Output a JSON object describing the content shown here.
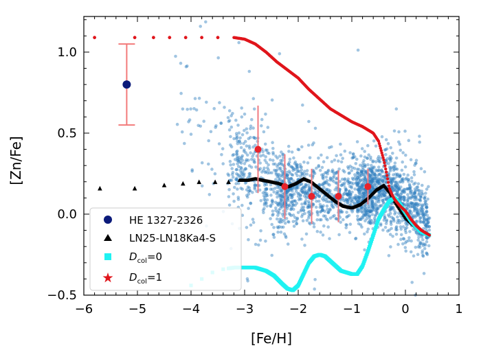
{
  "chart_data": {
    "type": "scatter",
    "xlabel": "[Fe/H]",
    "ylabel": "[Zn/Fe]",
    "xlim": [
      -6,
      1
    ],
    "ylim": [
      -0.5,
      1.22
    ],
    "x_ticks": [
      -6,
      -5,
      -4,
      -3,
      -2,
      -1,
      0,
      1
    ],
    "y_ticks": [
      -0.5,
      0.0,
      0.5,
      1.0
    ],
    "x_tick_labels": [
      "−6",
      "−5",
      "−4",
      "−3",
      "−2",
      "−1",
      "0",
      "1"
    ],
    "y_tick_labels": [
      "−0.5",
      "0.0",
      "0.5",
      "1.0"
    ],
    "grid": false,
    "legend_position": "bottom-left",
    "legend": [
      {
        "label": "HE 1327-2326",
        "marker": "circle",
        "color": "#0b1a7a"
      },
      {
        "label": "LN25-LN18Ka4-S",
        "marker": "triangle",
        "color": "#000000"
      },
      {
        "label_main": "D",
        "label_sub": "col",
        "label_rest": "=0",
        "marker": "square",
        "color": "#1ff2f2"
      },
      {
        "label_main": "D",
        "label_sub": "col",
        "label_rest": "=1",
        "marker": "star",
        "color": "#e0151b"
      }
    ],
    "observed_star": {
      "name": "HE 1327-2326",
      "x": -5.2,
      "y": 0.8,
      "y_err": 0.25,
      "color": "#0b1a7a",
      "errorbar_color": "#f27a7a"
    },
    "binned_means": {
      "color": "#e8232b",
      "errorbar_color": "#f07a80",
      "points": [
        {
          "x": -2.75,
          "y": 0.4,
          "err": 0.27
        },
        {
          "x": -2.25,
          "y": 0.17,
          "err": 0.2
        },
        {
          "x": -1.75,
          "y": 0.11,
          "err": 0.17
        },
        {
          "x": -1.25,
          "y": 0.11,
          "err": 0.16
        },
        {
          "x": -0.7,
          "y": 0.17,
          "err": 0.11
        }
      ]
    },
    "series": [
      {
        "name": "LN25-LN18Ka4-S",
        "marker": "triangle",
        "color": "#000000",
        "x": [
          -5.7,
          -5.05,
          -4.5,
          -4.15,
          -3.85,
          -3.55,
          -3.3,
          -3.1,
          -2.95,
          -2.8,
          -2.65,
          -2.5,
          -2.35,
          -2.2,
          -2.05,
          -1.9,
          -1.75,
          -1.6,
          -1.45,
          -1.3,
          -1.15,
          -1.0,
          -0.85,
          -0.7,
          -0.55,
          -0.4,
          -0.3,
          -0.2,
          -0.1,
          0.0,
          0.1,
          0.2,
          0.3,
          0.45
        ],
        "y": [
          0.16,
          0.16,
          0.18,
          0.19,
          0.2,
          0.2,
          0.2,
          0.21,
          0.21,
          0.22,
          0.21,
          0.2,
          0.19,
          0.17,
          0.19,
          0.22,
          0.2,
          0.16,
          0.12,
          0.08,
          0.05,
          0.04,
          0.06,
          0.1,
          0.15,
          0.18,
          0.14,
          0.08,
          0.03,
          -0.02,
          -0.05,
          -0.08,
          -0.11,
          -0.13
        ]
      },
      {
        "name": "Dcol=0",
        "marker": "square",
        "color": "#1ff2f2",
        "x": [
          -4.0,
          -3.8,
          -3.6,
          -3.4,
          -3.2,
          -3.0,
          -2.8,
          -2.6,
          -2.45,
          -2.3,
          -2.2,
          -2.1,
          -2.0,
          -1.9,
          -1.8,
          -1.7,
          -1.6,
          -1.5,
          -1.4,
          -1.3,
          -1.2,
          -1.1,
          -1.0,
          -0.9,
          -0.8,
          -0.7,
          -0.6,
          -0.5,
          -0.4,
          -0.3,
          -0.2,
          -0.1,
          0.0,
          0.1,
          0.2,
          0.3,
          0.45
        ],
        "y": [
          -0.44,
          -0.4,
          -0.36,
          -0.34,
          -0.33,
          -0.33,
          -0.33,
          -0.35,
          -0.38,
          -0.43,
          -0.46,
          -0.47,
          -0.44,
          -0.37,
          -0.3,
          -0.26,
          -0.25,
          -0.26,
          -0.29,
          -0.32,
          -0.35,
          -0.36,
          -0.37,
          -0.37,
          -0.32,
          -0.23,
          -0.13,
          -0.03,
          0.03,
          0.08,
          0.1,
          0.06,
          0.01,
          -0.04,
          -0.08,
          -0.11,
          -0.13
        ]
      },
      {
        "name": "Dcol=1",
        "marker": "star",
        "color": "#e0151b",
        "x": [
          -5.8,
          -5.05,
          -4.7,
          -4.4,
          -4.1,
          -3.8,
          -3.5,
          -3.2,
          -3.0,
          -2.8,
          -2.6,
          -2.4,
          -2.2,
          -2.0,
          -1.8,
          -1.6,
          -1.4,
          -1.2,
          -1.0,
          -0.8,
          -0.6,
          -0.5,
          -0.4,
          -0.35,
          -0.3,
          -0.25,
          -0.2,
          -0.1,
          0.0,
          0.1,
          0.2,
          0.3,
          0.45
        ],
        "y": [
          1.09,
          1.09,
          1.09,
          1.09,
          1.09,
          1.09,
          1.09,
          1.09,
          1.08,
          1.05,
          1.0,
          0.94,
          0.89,
          0.84,
          0.77,
          0.71,
          0.65,
          0.61,
          0.57,
          0.54,
          0.5,
          0.45,
          0.33,
          0.25,
          0.16,
          0.12,
          0.09,
          0.05,
          0.02,
          -0.03,
          -0.07,
          -0.1,
          -0.13
        ]
      }
    ],
    "background_sample": {
      "color": "#2e7ebf",
      "description_counts": "dense cloud of observed stars",
      "count": 2200
    }
  }
}
